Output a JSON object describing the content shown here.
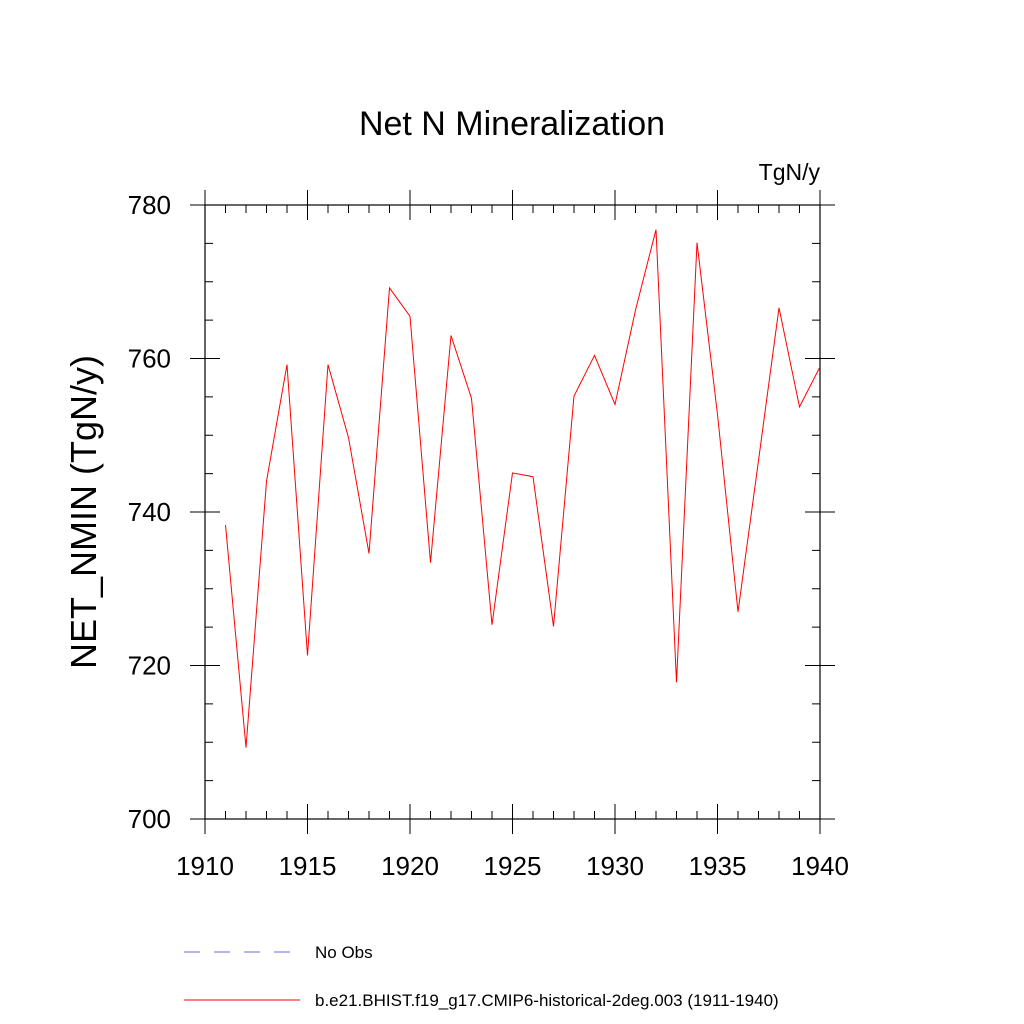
{
  "chart_data": {
    "type": "line",
    "title": "Net N Mineralization",
    "units_label": "TgN/y",
    "xlabel": "",
    "ylabel": "NET_NMIN  (TgN/y)",
    "xlim": [
      1910,
      1940
    ],
    "ylim": [
      700,
      780
    ],
    "x_ticks": [
      1910,
      1915,
      1920,
      1925,
      1930,
      1935,
      1940
    ],
    "x_tick_labels": [
      "1910",
      "1915",
      "1920",
      "1925",
      "1930",
      "1935",
      "1940"
    ],
    "y_ticks": [
      700,
      720,
      740,
      760,
      780
    ],
    "y_tick_labels": [
      "700",
      "720",
      "740",
      "760",
      "780"
    ],
    "y_minor_step": 5,
    "x_minor_step": 1,
    "grid": false,
    "legend_position": "bottom",
    "series": [
      {
        "name": "b.e21.BHIST.f19_g17.CMIP6-historical-2deg.003 (1911-1940)",
        "color": "#ff0000",
        "dash": "solid",
        "x": [
          1911,
          1912,
          1913,
          1914,
          1915,
          1916,
          1917,
          1918,
          1919,
          1920,
          1921,
          1922,
          1923,
          1924,
          1925,
          1926,
          1927,
          1928,
          1929,
          1930,
          1931,
          1932,
          1933,
          1934,
          1935,
          1936,
          1937,
          1938,
          1939,
          1940
        ],
        "values": [
          738.3,
          709.3,
          744.0,
          759.2,
          721.3,
          759.2,
          749.7,
          734.6,
          769.2,
          765.5,
          733.4,
          763.0,
          754.8,
          725.3,
          745.1,
          744.6,
          725.1,
          755.1,
          760.4,
          754.0,
          766.3,
          776.8,
          717.8,
          775.1,
          752.7,
          727.0,
          746.7,
          766.6,
          753.7,
          758.9
        ]
      }
    ],
    "legend": [
      {
        "label": "No Obs",
        "color": "#6a6ae0",
        "dash": "dashed"
      },
      {
        "label": "b.e21.BHIST.f19_g17.CMIP6-historical-2deg.003 (1911-1940)",
        "color": "#ff0000",
        "dash": "solid"
      }
    ]
  }
}
